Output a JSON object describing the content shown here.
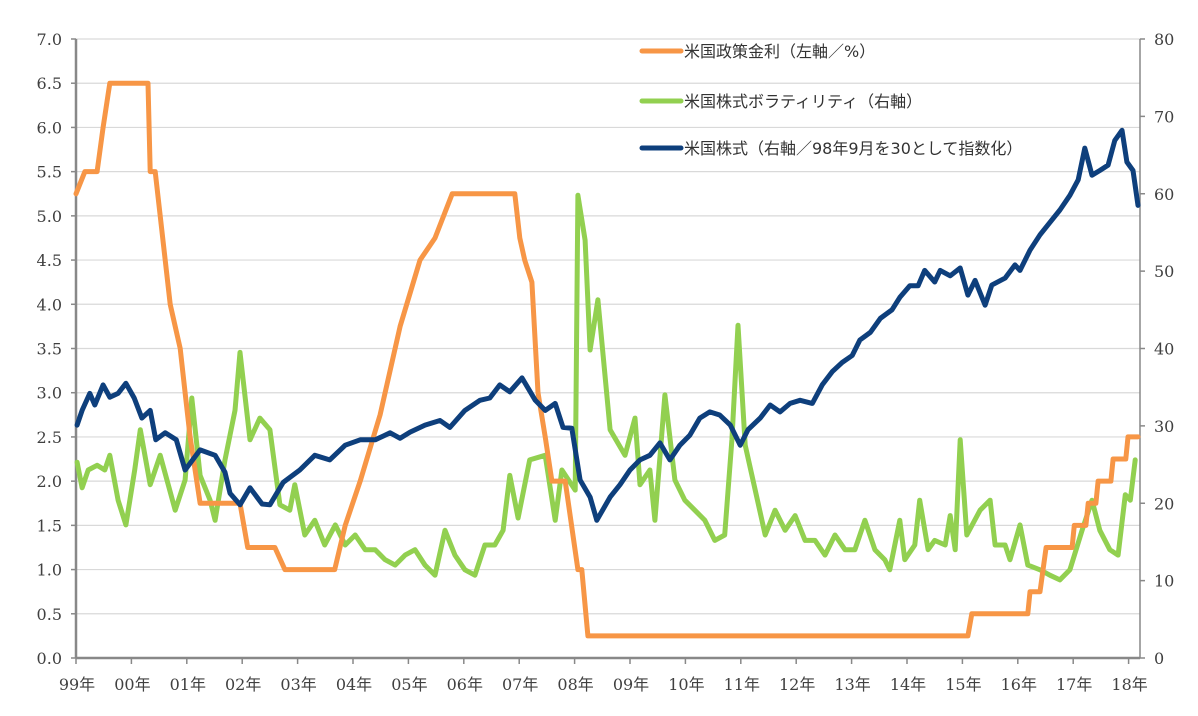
{
  "chart_data": {
    "type": "line",
    "title": "",
    "xlabel": "",
    "ylabel": "",
    "y2label": "",
    "xlim": [
      1999,
      2018.2
    ],
    "ylim": [
      0,
      7
    ],
    "y2lim": [
      0,
      80
    ],
    "grid": true,
    "legend_position": "top-right",
    "x_tick_labels": [
      "99年",
      "00年",
      "01年",
      "02年",
      "03年",
      "04年",
      "05年",
      "06年",
      "07年",
      "08年",
      "09年",
      "10年",
      "11年",
      "12年",
      "13年",
      "14年",
      "15年",
      "16年",
      "17年",
      "18年"
    ],
    "x_tick_values": [
      1999,
      2000,
      2001,
      2002,
      2003,
      2004,
      2005,
      2006,
      2007,
      2008,
      2009,
      2010,
      2011,
      2012,
      2013,
      2014,
      2015,
      2016,
      2017,
      2018
    ],
    "y_tick_labels": [
      "0.0",
      "0.5",
      "1.0",
      "1.5",
      "2.0",
      "2.5",
      "3.0",
      "3.5",
      "4.0",
      "4.5",
      "5.0",
      "5.5",
      "6.0",
      "6.5",
      "7.0"
    ],
    "y2_tick_labels": [
      "0",
      "10",
      "20",
      "30",
      "40",
      "50",
      "60",
      "70",
      "80"
    ],
    "series": [
      {
        "name": "米国政策金利（左軸／%）",
        "axis": "left",
        "color": "#f79646",
        "points": [
          [
            1999.0,
            5.25
          ],
          [
            1999.16,
            5.5
          ],
          [
            1999.38,
            5.5
          ],
          [
            1999.49,
            6.0
          ],
          [
            1999.61,
            6.5
          ],
          [
            2000.3,
            6.5
          ],
          [
            2000.34,
            5.5
          ],
          [
            2000.43,
            5.5
          ],
          [
            2000.61,
            4.5
          ],
          [
            2000.7,
            4.0
          ],
          [
            2000.79,
            3.75
          ],
          [
            2000.88,
            3.5
          ],
          [
            2000.97,
            3.0
          ],
          [
            2001.06,
            2.5
          ],
          [
            2001.24,
            1.75
          ],
          [
            2001.96,
            1.75
          ],
          [
            2002.1,
            1.25
          ],
          [
            2002.59,
            1.25
          ],
          [
            2002.77,
            1.0
          ],
          [
            2003.67,
            1.0
          ],
          [
            2003.86,
            1.5
          ],
          [
            2004.13,
            2.0
          ],
          [
            2004.49,
            2.75
          ],
          [
            2004.85,
            3.75
          ],
          [
            2005.21,
            4.5
          ],
          [
            2005.48,
            4.75
          ],
          [
            2005.79,
            5.25
          ],
          [
            2006.92,
            5.25
          ],
          [
            2007.01,
            4.75
          ],
          [
            2007.1,
            4.5
          ],
          [
            2007.23,
            4.25
          ],
          [
            2007.34,
            3.0
          ],
          [
            2007.47,
            2.5
          ],
          [
            2007.59,
            2.0
          ],
          [
            2007.83,
            2.0
          ],
          [
            2008.06,
            1.0
          ],
          [
            2008.13,
            1.0
          ],
          [
            2008.24,
            0.25
          ],
          [
            2015.1,
            0.25
          ],
          [
            2015.17,
            0.5
          ],
          [
            2016.18,
            0.5
          ],
          [
            2016.22,
            0.75
          ],
          [
            2016.4,
            0.75
          ],
          [
            2016.51,
            1.25
          ],
          [
            2016.98,
            1.25
          ],
          [
            2017.02,
            1.5
          ],
          [
            2017.23,
            1.5
          ],
          [
            2017.27,
            1.75
          ],
          [
            2017.41,
            1.75
          ],
          [
            2017.45,
            2.0
          ],
          [
            2017.68,
            2.0
          ],
          [
            2017.72,
            2.25
          ],
          [
            2017.95,
            2.25
          ],
          [
            2017.99,
            2.5
          ],
          [
            2018.17,
            2.5
          ]
        ]
      },
      {
        "name": "米国株式ボラティリティ（右軸）",
        "axis": "right",
        "color": "#92d050",
        "points": [
          [
            1999.02,
            25.3
          ],
          [
            1999.11,
            22
          ],
          [
            1999.22,
            24.3
          ],
          [
            1999.38,
            24.9
          ],
          [
            1999.52,
            24.3
          ],
          [
            1999.61,
            26.2
          ],
          [
            1999.76,
            20.4
          ],
          [
            1999.9,
            17.2
          ],
          [
            2000.06,
            24.3
          ],
          [
            2000.16,
            29.5
          ],
          [
            2000.34,
            22.4
          ],
          [
            2000.52,
            26.2
          ],
          [
            2000.79,
            19.1
          ],
          [
            2000.97,
            23
          ],
          [
            2001.09,
            33.6
          ],
          [
            2001.24,
            23.6
          ],
          [
            2001.42,
            20.4
          ],
          [
            2001.51,
            17.8
          ],
          [
            2001.69,
            25.6
          ],
          [
            2001.87,
            32
          ],
          [
            2001.96,
            39.5
          ],
          [
            2002.14,
            28.2
          ],
          [
            2002.32,
            31
          ],
          [
            2002.5,
            29.5
          ],
          [
            2002.68,
            19.8
          ],
          [
            2002.86,
            19.1
          ],
          [
            2002.95,
            22.4
          ],
          [
            2003.13,
            15.9
          ],
          [
            2003.31,
            17.8
          ],
          [
            2003.49,
            14.6
          ],
          [
            2003.68,
            17.2
          ],
          [
            2003.86,
            14.6
          ],
          [
            2004.04,
            15.9
          ],
          [
            2004.22,
            14
          ],
          [
            2004.4,
            14
          ],
          [
            2004.58,
            12.7
          ],
          [
            2004.76,
            12
          ],
          [
            2004.94,
            13.3
          ],
          [
            2005.12,
            14
          ],
          [
            2005.3,
            12
          ],
          [
            2005.48,
            10.7
          ],
          [
            2005.66,
            16.5
          ],
          [
            2005.84,
            13.3
          ],
          [
            2006.02,
            11.4
          ],
          [
            2006.2,
            10.7
          ],
          [
            2006.38,
            14.6
          ],
          [
            2006.56,
            14.6
          ],
          [
            2006.71,
            16.5
          ],
          [
            2006.83,
            23.6
          ],
          [
            2006.98,
            18.1
          ],
          [
            2007.19,
            25.6
          ],
          [
            2007.47,
            26.2
          ],
          [
            2007.65,
            17.8
          ],
          [
            2007.77,
            24.3
          ],
          [
            2008.01,
            21.7
          ],
          [
            2008.06,
            59.8
          ],
          [
            2008.19,
            54
          ],
          [
            2008.28,
            39.8
          ],
          [
            2008.42,
            46.3
          ],
          [
            2008.64,
            29.5
          ],
          [
            2008.91,
            26.2
          ],
          [
            2009.09,
            31
          ],
          [
            2009.18,
            22.4
          ],
          [
            2009.36,
            24.3
          ],
          [
            2009.45,
            17.8
          ],
          [
            2009.63,
            34
          ],
          [
            2009.81,
            23
          ],
          [
            2009.99,
            20.4
          ],
          [
            2010.17,
            19.1
          ],
          [
            2010.35,
            17.8
          ],
          [
            2010.53,
            15.2
          ],
          [
            2010.71,
            15.9
          ],
          [
            2010.84,
            28.2
          ],
          [
            2010.95,
            43
          ],
          [
            2011.08,
            27.5
          ],
          [
            2011.26,
            21.7
          ],
          [
            2011.44,
            15.9
          ],
          [
            2011.62,
            19.1
          ],
          [
            2011.8,
            16.5
          ],
          [
            2011.98,
            18.4
          ],
          [
            2012.16,
            15.2
          ],
          [
            2012.34,
            15.2
          ],
          [
            2012.52,
            13.3
          ],
          [
            2012.7,
            15.9
          ],
          [
            2012.88,
            14
          ],
          [
            2013.06,
            14
          ],
          [
            2013.24,
            17.8
          ],
          [
            2013.42,
            14
          ],
          [
            2013.6,
            12.7
          ],
          [
            2013.69,
            11.4
          ],
          [
            2013.87,
            17.8
          ],
          [
            2013.96,
            12.7
          ],
          [
            2014.14,
            14.6
          ],
          [
            2014.23,
            20.4
          ],
          [
            2014.38,
            14
          ],
          [
            2014.5,
            15.2
          ],
          [
            2014.69,
            14.6
          ],
          [
            2014.78,
            18.4
          ],
          [
            2014.87,
            14
          ],
          [
            2014.96,
            28.2
          ],
          [
            2015.08,
            15.9
          ],
          [
            2015.32,
            19.1
          ],
          [
            2015.5,
            20.4
          ],
          [
            2015.59,
            14.6
          ],
          [
            2015.77,
            14.6
          ],
          [
            2015.86,
            12.7
          ],
          [
            2016.04,
            17.2
          ],
          [
            2016.18,
            12
          ],
          [
            2016.4,
            11.4
          ],
          [
            2016.58,
            10.7
          ],
          [
            2016.76,
            10.1
          ],
          [
            2016.94,
            11.4
          ],
          [
            2017.16,
            16.5
          ],
          [
            2017.34,
            20.4
          ],
          [
            2017.48,
            16.5
          ],
          [
            2017.66,
            14
          ],
          [
            2017.81,
            13.3
          ],
          [
            2017.94,
            21.1
          ],
          [
            2018.03,
            20.4
          ],
          [
            2018.12,
            25.6
          ]
        ]
      },
      {
        "name": "米国株式（右軸／98年9月を30として指数化）",
        "axis": "right",
        "color": "#0e3f7c",
        "points": [
          [
            1999.02,
            30.1
          ],
          [
            1999.11,
            32
          ],
          [
            1999.25,
            34.2
          ],
          [
            1999.34,
            32.7
          ],
          [
            1999.49,
            35.3
          ],
          [
            1999.61,
            33.7
          ],
          [
            1999.76,
            34.2
          ],
          [
            1999.9,
            35.5
          ],
          [
            2000.05,
            33.6
          ],
          [
            2000.19,
            31
          ],
          [
            2000.34,
            32
          ],
          [
            2000.44,
            28.2
          ],
          [
            2000.61,
            29.1
          ],
          [
            2000.81,
            28.2
          ],
          [
            2000.97,
            24.3
          ],
          [
            2001.24,
            26.9
          ],
          [
            2001.51,
            26.2
          ],
          [
            2001.69,
            24
          ],
          [
            2001.78,
            21.3
          ],
          [
            2001.96,
            19.8
          ],
          [
            2002.14,
            22
          ],
          [
            2002.36,
            19.9
          ],
          [
            2002.5,
            19.8
          ],
          [
            2002.74,
            22.7
          ],
          [
            2003.04,
            24.3
          ],
          [
            2003.31,
            26.2
          ],
          [
            2003.58,
            25.6
          ],
          [
            2003.86,
            27.5
          ],
          [
            2004.13,
            28.2
          ],
          [
            2004.4,
            28.2
          ],
          [
            2004.67,
            29.1
          ],
          [
            2004.85,
            28.4
          ],
          [
            2005.03,
            29.2
          ],
          [
            2005.3,
            30.1
          ],
          [
            2005.57,
            30.7
          ],
          [
            2005.75,
            29.8
          ],
          [
            2006.02,
            32
          ],
          [
            2006.29,
            33.3
          ],
          [
            2006.47,
            33.6
          ],
          [
            2006.65,
            35.3
          ],
          [
            2006.83,
            34.4
          ],
          [
            2007.05,
            36.2
          ],
          [
            2007.29,
            33.3
          ],
          [
            2007.47,
            32
          ],
          [
            2007.65,
            32.9
          ],
          [
            2007.79,
            29.8
          ],
          [
            2007.95,
            29.7
          ],
          [
            2008.1,
            23
          ],
          [
            2008.28,
            20.8
          ],
          [
            2008.4,
            17.8
          ],
          [
            2008.64,
            20.8
          ],
          [
            2008.82,
            22.4
          ],
          [
            2009.0,
            24.3
          ],
          [
            2009.18,
            25.6
          ],
          [
            2009.36,
            26.2
          ],
          [
            2009.54,
            27.8
          ],
          [
            2009.72,
            25.6
          ],
          [
            2009.9,
            27.5
          ],
          [
            2010.08,
            28.8
          ],
          [
            2010.26,
            31
          ],
          [
            2010.44,
            31.8
          ],
          [
            2010.62,
            31.4
          ],
          [
            2010.81,
            30.1
          ],
          [
            2010.99,
            27.5
          ],
          [
            2011.13,
            29.5
          ],
          [
            2011.35,
            31
          ],
          [
            2011.53,
            32.7
          ],
          [
            2011.71,
            31.8
          ],
          [
            2011.89,
            32.9
          ],
          [
            2012.07,
            33.3
          ],
          [
            2012.29,
            32.9
          ],
          [
            2012.47,
            35.3
          ],
          [
            2012.65,
            37
          ],
          [
            2012.83,
            38.2
          ],
          [
            2013.01,
            39.1
          ],
          [
            2013.15,
            41.1
          ],
          [
            2013.34,
            42.1
          ],
          [
            2013.52,
            43.9
          ],
          [
            2013.73,
            45
          ],
          [
            2013.87,
            46.6
          ],
          [
            2014.05,
            48.1
          ],
          [
            2014.2,
            48.1
          ],
          [
            2014.32,
            50.1
          ],
          [
            2014.5,
            48.6
          ],
          [
            2014.6,
            50.1
          ],
          [
            2014.78,
            49.4
          ],
          [
            2014.96,
            50.4
          ],
          [
            2015.1,
            46.9
          ],
          [
            2015.23,
            48.8
          ],
          [
            2015.41,
            45.6
          ],
          [
            2015.53,
            48.2
          ],
          [
            2015.77,
            49.1
          ],
          [
            2015.95,
            50.8
          ],
          [
            2016.04,
            50.1
          ],
          [
            2016.22,
            52.7
          ],
          [
            2016.4,
            54.7
          ],
          [
            2016.58,
            56.3
          ],
          [
            2016.76,
            57.9
          ],
          [
            2016.94,
            59.8
          ],
          [
            2017.09,
            61.8
          ],
          [
            2017.21,
            65.9
          ],
          [
            2017.34,
            62.4
          ],
          [
            2017.48,
            63
          ],
          [
            2017.63,
            63.7
          ],
          [
            2017.75,
            66.9
          ],
          [
            2017.88,
            68.2
          ],
          [
            2017.97,
            64.1
          ],
          [
            2018.08,
            63
          ],
          [
            2018.17,
            58.5
          ]
        ]
      }
    ]
  }
}
